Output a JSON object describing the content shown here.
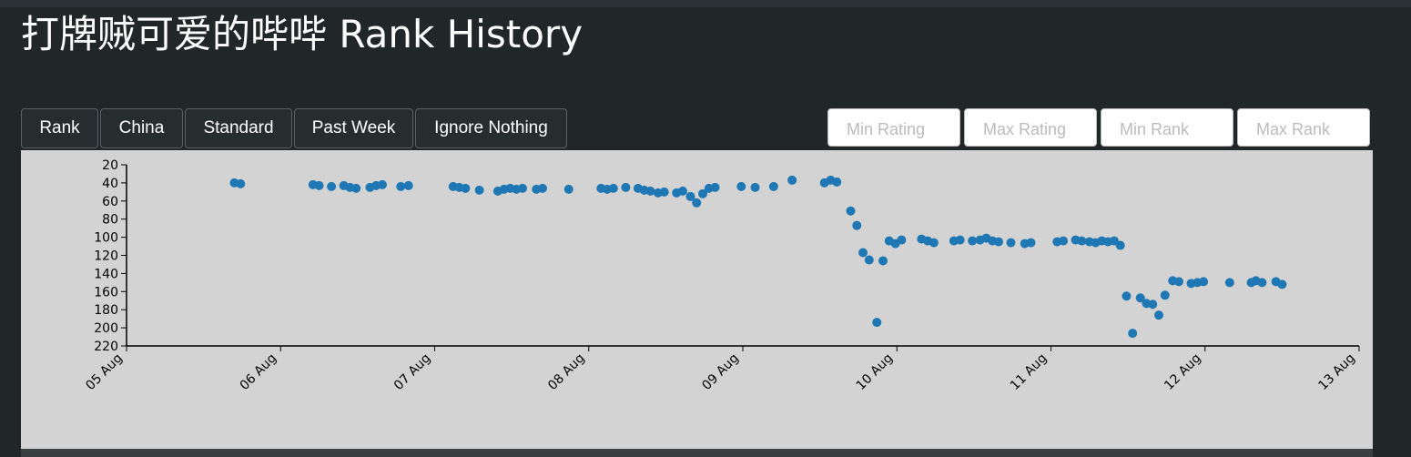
{
  "header": {
    "title": "打牌贼可爱的哔哔 Rank History"
  },
  "buttons": [
    "Rank",
    "China",
    "Standard",
    "Past Week",
    "Ignore Nothing"
  ],
  "inputs": [
    "Min Rating",
    "Max Rating",
    "Min Rank",
    "Max Rank"
  ],
  "chart_data": {
    "type": "scatter",
    "color": "#1f77b4",
    "y_reversed": true,
    "xlim": [
      5,
      13
    ],
    "xticks": [
      {
        "value": 5,
        "label": "05 Aug"
      },
      {
        "value": 6,
        "label": "06 Aug"
      },
      {
        "value": 7,
        "label": "07 Aug"
      },
      {
        "value": 8,
        "label": "08 Aug"
      },
      {
        "value": 9,
        "label": "09 Aug"
      },
      {
        "value": 10,
        "label": "10 Aug"
      },
      {
        "value": 11,
        "label": "11 Aug"
      },
      {
        "value": 12,
        "label": "12 Aug"
      },
      {
        "value": 13,
        "label": "13 Aug"
      }
    ],
    "ylim": [
      20,
      220
    ],
    "yticks": [
      20,
      40,
      60,
      80,
      100,
      120,
      140,
      160,
      180,
      200,
      220
    ],
    "x": [
      5.7,
      5.74,
      6.21,
      6.25,
      6.33,
      6.41,
      6.45,
      6.49,
      6.58,
      6.62,
      6.66,
      6.78,
      6.83,
      7.12,
      7.16,
      7.2,
      7.29,
      7.41,
      7.45,
      7.49,
      7.53,
      7.57,
      7.66,
      7.7,
      7.87,
      8.08,
      8.12,
      8.16,
      8.24,
      8.32,
      8.36,
      8.4,
      8.45,
      8.49,
      8.57,
      8.61,
      8.66,
      8.7,
      8.74,
      8.78,
      8.82,
      8.99,
      9.08,
      9.2,
      9.32,
      9.53,
      9.57,
      9.61,
      9.7,
      9.74,
      9.78,
      9.82,
      9.87,
      9.91,
      9.95,
      9.99,
      10.03,
      10.16,
      10.2,
      10.24,
      10.37,
      10.41,
      10.49,
      10.54,
      10.58,
      10.62,
      10.66,
      10.74,
      10.83,
      10.87,
      11.04,
      11.08,
      11.16,
      11.2,
      11.25,
      11.29,
      11.33,
      11.37,
      11.41,
      11.45,
      11.49,
      11.53,
      11.58,
      11.62,
      11.66,
      11.7,
      11.74,
      11.79,
      11.83,
      11.91,
      11.95,
      11.99,
      12.16,
      12.3,
      12.33,
      12.37,
      12.46,
      12.5
    ],
    "values": [
      40,
      41,
      42,
      43,
      44,
      43,
      45,
      46,
      45,
      43,
      42,
      44,
      43,
      44,
      45,
      46,
      48,
      49,
      47,
      46,
      47,
      46,
      47,
      46,
      47,
      46,
      47,
      46,
      45,
      46,
      48,
      49,
      51,
      50,
      51,
      49,
      55,
      62,
      52,
      46,
      45,
      44,
      45,
      44,
      37,
      40,
      37,
      39,
      71,
      87,
      117,
      125,
      194,
      126,
      104,
      107,
      103,
      102,
      104,
      106,
      104,
      103,
      104,
      103,
      101,
      104,
      105,
      106,
      107,
      106,
      105,
      104,
      103,
      104,
      105,
      106,
      104,
      105,
      104,
      109,
      165,
      206,
      167,
      173,
      174,
      186,
      164,
      148,
      149,
      151,
      150,
      149,
      150,
      150,
      148,
      150,
      149,
      152
    ]
  }
}
